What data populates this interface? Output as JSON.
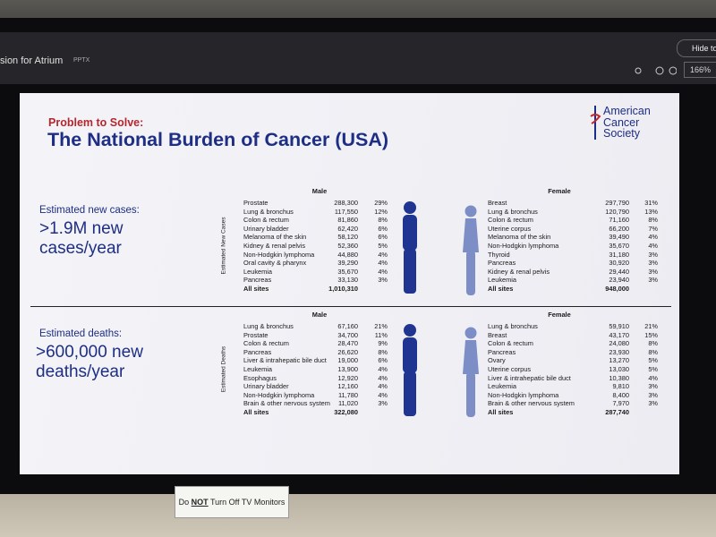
{
  "toolbar": {
    "file_name": "sion for Atrium",
    "file_type": "PPTX",
    "hide_button": "Hide too",
    "zoom": "166%"
  },
  "slide": {
    "kicker": "Problem to Solve:",
    "title": "The National Burden of Cancer (USA)",
    "logo": [
      "American",
      "Cancer",
      "Society"
    ],
    "sections": [
      {
        "label": "Estimated new cases:",
        "headline": [
          ">1.9M new",
          "cases/year"
        ],
        "side_label": "Estimated New Cases",
        "male": {
          "header": "Male",
          "rows": [
            [
              "Prostate",
              "288,300",
              "29%"
            ],
            [
              "Lung & bronchus",
              "117,550",
              "12%"
            ],
            [
              "Colon & rectum",
              "81,860",
              "8%"
            ],
            [
              "Urinary bladder",
              "62,420",
              "6%"
            ],
            [
              "Melanoma of the skin",
              "58,120",
              "6%"
            ],
            [
              "Kidney & renal pelvis",
              "52,360",
              "5%"
            ],
            [
              "Non-Hodgkin lymphoma",
              "44,880",
              "4%"
            ],
            [
              "Oral cavity & pharynx",
              "39,290",
              "4%"
            ],
            [
              "Leukemia",
              "35,670",
              "4%"
            ],
            [
              "Pancreas",
              "33,130",
              "3%"
            ]
          ],
          "total": [
            "All sites",
            "1,010,310"
          ]
        },
        "female": {
          "header": "Female",
          "rows": [
            [
              "Breast",
              "297,790",
              "31%"
            ],
            [
              "Lung & bronchus",
              "120,790",
              "13%"
            ],
            [
              "Colon & rectum",
              "71,160",
              "8%"
            ],
            [
              "Uterine corpus",
              "66,200",
              "7%"
            ],
            [
              "Melanoma of the skin",
              "39,490",
              "4%"
            ],
            [
              "Non-Hodgkin lymphoma",
              "35,670",
              "4%"
            ],
            [
              "Thyroid",
              "31,180",
              "3%"
            ],
            [
              "Pancreas",
              "30,920",
              "3%"
            ],
            [
              "Kidney & renal pelvis",
              "29,440",
              "3%"
            ],
            [
              "Leukemia",
              "23,940",
              "3%"
            ]
          ],
          "total": [
            "All sites",
            "948,000"
          ]
        }
      },
      {
        "label": "Estimated deaths:",
        "headline": [
          ">600,000 new",
          "deaths/year"
        ],
        "side_label": "Estimated Deaths",
        "male": {
          "header": "Male",
          "rows": [
            [
              "Lung & bronchus",
              "67,160",
              "21%"
            ],
            [
              "Prostate",
              "34,700",
              "11%"
            ],
            [
              "Colon & rectum",
              "28,470",
              "9%"
            ],
            [
              "Pancreas",
              "26,620",
              "8%"
            ],
            [
              "Liver & intrahepatic bile duct",
              "19,000",
              "6%"
            ],
            [
              "Leukemia",
              "13,900",
              "4%"
            ],
            [
              "Esophagus",
              "12,920",
              "4%"
            ],
            [
              "Urinary bladder",
              "12,160",
              "4%"
            ],
            [
              "Non-Hodgkin lymphoma",
              "11,780",
              "4%"
            ],
            [
              "Brain & other nervous system",
              "11,020",
              "3%"
            ]
          ],
          "total": [
            "All sites",
            "322,080"
          ]
        },
        "female": {
          "header": "Female",
          "rows": [
            [
              "Lung & bronchus",
              "59,910",
              "21%"
            ],
            [
              "Breast",
              "43,170",
              "15%"
            ],
            [
              "Colon & rectum",
              "24,080",
              "8%"
            ],
            [
              "Pancreas",
              "23,930",
              "8%"
            ],
            [
              "Ovary",
              "13,270",
              "5%"
            ],
            [
              "Uterine corpus",
              "13,030",
              "5%"
            ],
            [
              "Liver & intrahepatic bile duct",
              "10,380",
              "4%"
            ],
            [
              "Leukemia",
              "9,810",
              "3%"
            ],
            [
              "Non-Hodgkin lymphoma",
              "8,400",
              "3%"
            ],
            [
              "Brain & other nervous system",
              "7,970",
              "3%"
            ]
          ],
          "total": [
            "All sites",
            "287,740"
          ]
        }
      }
    ]
  },
  "sticker": {
    "before": "Do",
    "emphasis": "NOT",
    "after": "Turn Off TV Monitors"
  }
}
